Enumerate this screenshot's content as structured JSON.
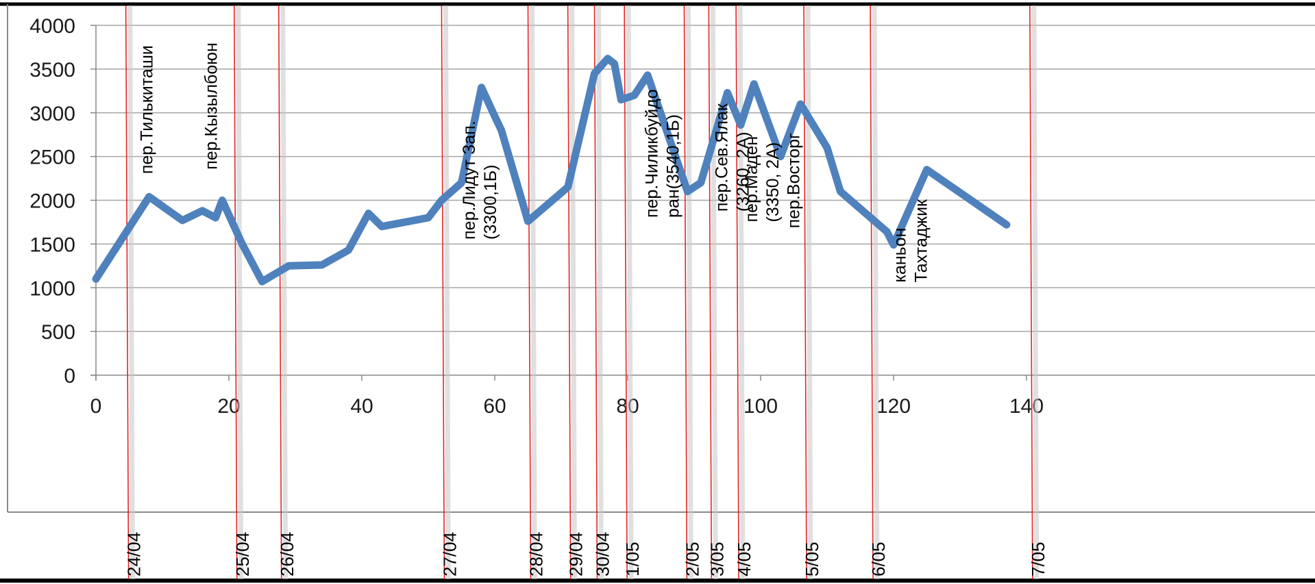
{
  "chart_data": {
    "type": "line",
    "xlim": [
      0,
      160
    ],
    "ylim": [
      0,
      4000
    ],
    "x_ticks": [
      0,
      20,
      40,
      60,
      80,
      100,
      120,
      140
    ],
    "y_ticks": [
      0,
      500,
      1000,
      1500,
      2000,
      2500,
      3000,
      3500,
      4000
    ],
    "grid": "horizontal",
    "legend": "none",
    "series": [
      {
        "color": "#4f81bd",
        "points": [
          [
            0,
            1100
          ],
          [
            8,
            2040
          ],
          [
            13,
            1770
          ],
          [
            16,
            1880
          ],
          [
            18,
            1800
          ],
          [
            19,
            2000
          ],
          [
            22,
            1500
          ],
          [
            25,
            1070
          ],
          [
            29,
            1250
          ],
          [
            34,
            1260
          ],
          [
            38,
            1430
          ],
          [
            41,
            1850
          ],
          [
            43,
            1700
          ],
          [
            50,
            1800
          ],
          [
            52,
            2000
          ],
          [
            55,
            2200
          ],
          [
            58,
            3290
          ],
          [
            60,
            2960
          ],
          [
            61,
            2800
          ],
          [
            65,
            1760
          ],
          [
            71,
            2150
          ],
          [
            75,
            3450
          ],
          [
            77,
            3620
          ],
          [
            78,
            3560
          ],
          [
            79,
            3150
          ],
          [
            81,
            3200
          ],
          [
            83,
            3430
          ],
          [
            89,
            2100
          ],
          [
            91,
            2200
          ],
          [
            95,
            3230
          ],
          [
            97,
            2860
          ],
          [
            99,
            3330
          ],
          [
            103,
            2500
          ],
          [
            106,
            3100
          ],
          [
            110,
            2600
          ],
          [
            112,
            2100
          ],
          [
            119,
            1640
          ],
          [
            120,
            1490
          ],
          [
            125,
            2350
          ],
          [
            137,
            1720
          ]
        ]
      }
    ],
    "markers": [
      {
        "x": 4.5,
        "label": "24/04"
      },
      {
        "x": 20.8,
        "label": "25/04"
      },
      {
        "x": 27.5,
        "label": "26/04"
      },
      {
        "x": 52,
        "label": "27/04"
      },
      {
        "x": 65,
        "label": "28/04"
      },
      {
        "x": 71,
        "label": "29/04"
      },
      {
        "x": 75,
        "label": "30/04"
      },
      {
        "x": 79.5,
        "label": "1/05"
      },
      {
        "x": 88.5,
        "label": "2/05"
      },
      {
        "x": 92.2,
        "label": "3/05"
      },
      {
        "x": 96.3,
        "label": "4/05"
      },
      {
        "x": 106.5,
        "label": "5/05"
      },
      {
        "x": 116.5,
        "label": "6/05"
      },
      {
        "x": 140.5,
        "label": "7/05"
      }
    ],
    "annotations": [
      {
        "lines": [
          "пер.Тилькиташи"
        ],
        "x": 8.5,
        "y": 2300
      },
      {
        "lines": [
          "пер.Кызылбоюн"
        ],
        "x": 18.2,
        "y": 2350
      },
      {
        "lines": [
          "пер.Лидут Зап.",
          "(3300,1Б)"
        ],
        "x": 57,
        "y": 1550
      },
      {
        "lines": [
          "пер.Чиликбуйдо",
          "ран(3540,1Б)"
        ],
        "x": 84.5,
        "y": 1800
      },
      {
        "lines": [
          "пер.Сев.Ялак",
          "(3260, 2А)"
        ],
        "x": 95,
        "y": 1870
      },
      {
        "lines": [
          "пер.Маден",
          "(3350, 2А)"
        ],
        "x": 99.5,
        "y": 1750
      },
      {
        "lines": [
          "пер.Восторг"
        ],
        "x": 105.8,
        "y": 1680
      },
      {
        "lines": [
          "каньон",
          "Тахтаджик"
        ],
        "x": 121.8,
        "y": 1060
      }
    ]
  }
}
